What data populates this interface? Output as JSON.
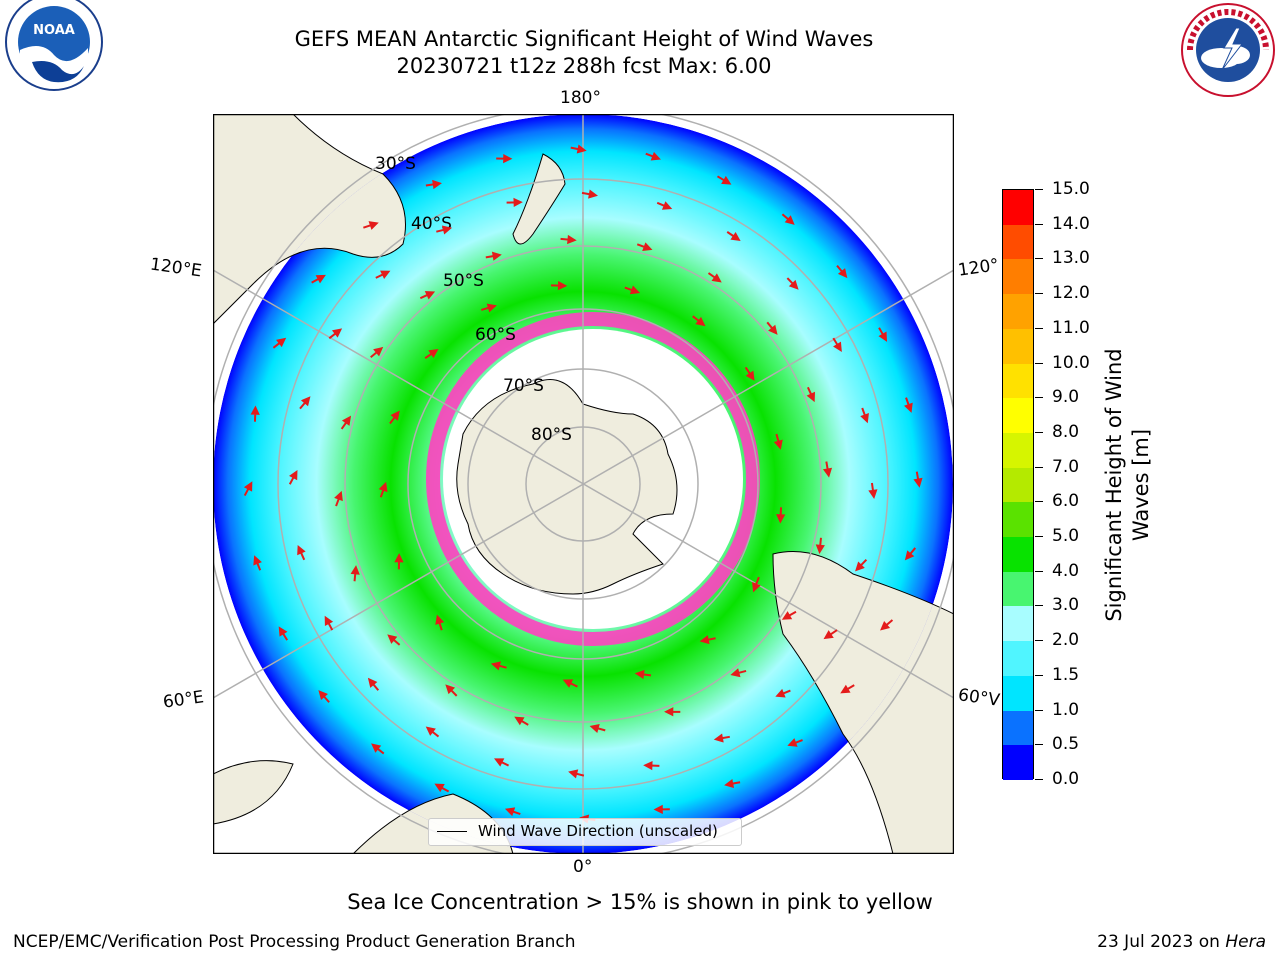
{
  "header": {
    "title_line1": "GEFS MEAN Antarctic Significant Height of Wind Waves",
    "title_line2": "20230721 t12z 288h fcst   Max: 6.00"
  },
  "logos": {
    "left": {
      "text": "NOAA",
      "icon": "noaa-logo"
    },
    "right": {
      "text": "NATIONAL WEATHER SERVICE",
      "icon": "nws-logo"
    }
  },
  "map": {
    "projection": "south-polar-stereographic",
    "longitude_labels": {
      "top": "180°",
      "bottom": "0°",
      "upper_left": "120°E",
      "upper_right": "120°",
      "lower_left": "60°E",
      "lower_right": "60°V"
    },
    "latitude_labels": [
      "30°S",
      "40°S",
      "50°S",
      "60°S",
      "70°S",
      "80°S"
    ],
    "colors": {
      "land": "#efedde",
      "ice_free_ocean_outside_domain": "#ffffff",
      "graticule": "#b0b0b0",
      "arrow": "#e41b1b",
      "sea_ice_edge": "#ff40c0"
    },
    "legend": {
      "label": "Wind Wave Direction (unscaled)"
    }
  },
  "colorbar": {
    "title": "Significant Height of Wind Waves [m]",
    "tick_labels": [
      "0.0",
      "0.5",
      "1.0",
      "1.5",
      "2.0",
      "3.0",
      "4.0",
      "5.0",
      "6.0",
      "7.0",
      "8.0",
      "9.0",
      "10.0",
      "11.0",
      "12.0",
      "13.0",
      "14.0",
      "15.0"
    ],
    "colors": [
      "#0000ff",
      "#0a72ff",
      "#00e5ff",
      "#50f5ff",
      "#a8fdff",
      "#48f570",
      "#08e200",
      "#5ae200",
      "#b4ea00",
      "#d6f500",
      "#ffff00",
      "#ffe100",
      "#ffc000",
      "#ffa200",
      "#ff7e00",
      "#ff4c00",
      "#ff0000"
    ]
  },
  "note": "Sea Ice Concentration > 15% is shown in pink to yellow",
  "footer": {
    "left": "NCEP/EMC/Verification Post Processing Product Generation Branch",
    "right_date": "23 Jul 2023 on ",
    "right_host": "Hera"
  }
}
